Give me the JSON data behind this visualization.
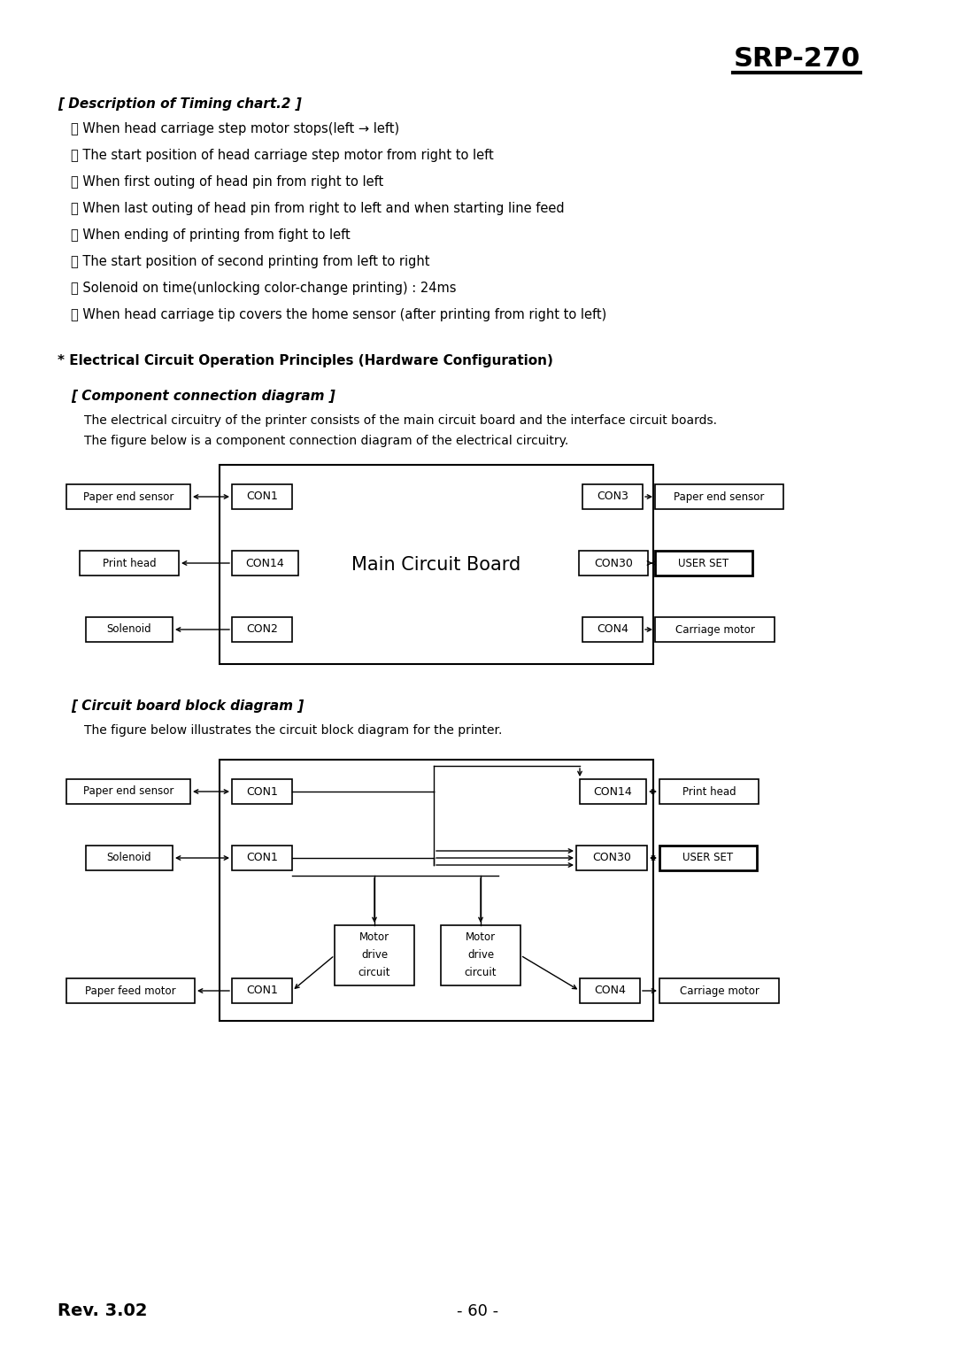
{
  "title": "SRP-270",
  "bg_color": "#ffffff",
  "timing_header": "[ Description of Timing chart.2 ]",
  "timing_items": [
    [
      "ⓒ",
      "When head carriage step motor stops(left → left)"
    ],
    [
      "ⓓ",
      "The start position of head carriage step motor from right to left"
    ],
    [
      "ⓔ",
      "When first outing of head pin from right to left"
    ],
    [
      "ⓐ",
      "When last outing of head pin from right to left and when starting line feed"
    ],
    [
      "ⓑ",
      "When ending of printing from fight to left"
    ],
    [
      "ⓒ",
      "The start position of second printing from left to right"
    ],
    [
      "ⓓ",
      "Solenoid on time(unlocking color-change printing) : 24ms"
    ],
    [
      "ⓔ",
      "When head carriage tip covers the home sensor (after printing from right to left)"
    ]
  ],
  "elec_header": "* Electrical Circuit Operation Principles (Hardware Configuration)",
  "comp_header": "[ Component connection diagram ]",
  "comp_desc1": "The electrical circuitry of the printer consists of the main circuit board and the interface circuit boards.",
  "comp_desc2": "The figure below is a component connection diagram of the electrical circuitry.",
  "circuit_header": "[ Circuit board block diagram ]",
  "circuit_desc": "The figure below illustrates the circuit block diagram for the printer.",
  "footer_left": "Rev. 3.02",
  "footer_center": "- 60 -"
}
